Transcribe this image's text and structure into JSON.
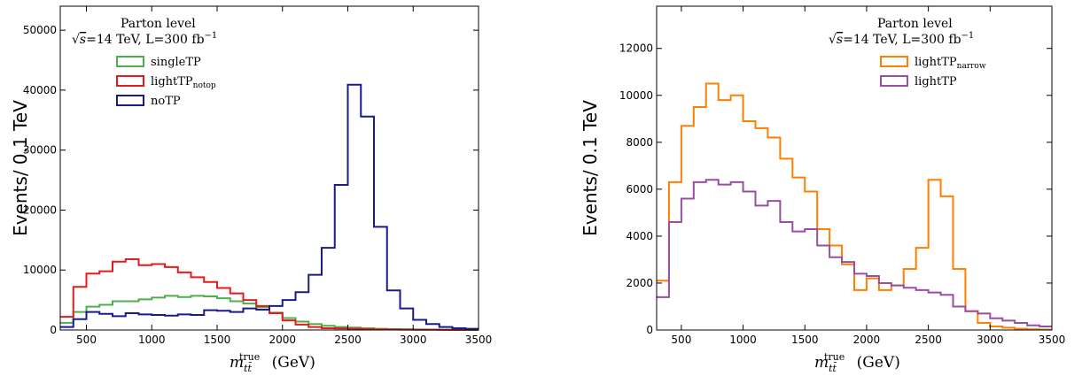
{
  "chart_data": [
    {
      "type": "step-histogram",
      "ylabel": "Events/ 0.1 TeV",
      "xlabel_main": "m",
      "xlabel_sub": "tt̄",
      "xlabel_sup": "true",
      "xlabel_unit": "(GeV)",
      "xlim": [
        300,
        3500
      ],
      "ylim": [
        0,
        54000
      ],
      "xticks": [
        500,
        1000,
        1500,
        2000,
        2500,
        3000,
        3500
      ],
      "yticks": [
        0,
        10000,
        20000,
        30000,
        40000,
        50000
      ],
      "annotation_line1": "Parton level",
      "annotation_sqrt": "√",
      "annotation_s": "s",
      "annotation_line2": "=14 TeV,  L=300 fb",
      "annotation_sup": "−1",
      "legend_position": "upper-left",
      "bin_edges": [
        300,
        400,
        500,
        600,
        700,
        800,
        900,
        1000,
        1100,
        1200,
        1300,
        1400,
        1500,
        1600,
        1700,
        1800,
        1900,
        2000,
        2100,
        2200,
        2300,
        2400,
        2500,
        2600,
        2700,
        2800,
        2900,
        3000,
        3100,
        3200,
        3300,
        3400,
        3500
      ],
      "series": [
        {
          "name": "singleTP",
          "name_sub": "",
          "color": "#4daf4a",
          "values": [
            1200,
            3000,
            3900,
            4200,
            4800,
            4800,
            5100,
            5400,
            5700,
            5500,
            5700,
            5600,
            5300,
            4800,
            4400,
            3800,
            2900,
            2000,
            1400,
            1000,
            700,
            500,
            400,
            300,
            200,
            150,
            120,
            100,
            80,
            60,
            40,
            30
          ]
        },
        {
          "name": "lightTP",
          "name_sub": "notop",
          "color": "#e41a1c",
          "values": [
            2200,
            7200,
            9400,
            9800,
            11400,
            11800,
            10800,
            11000,
            10500,
            9600,
            8800,
            8000,
            7000,
            6100,
            5000,
            4000,
            2800,
            1600,
            900,
            500,
            300,
            250,
            200,
            150,
            100,
            80,
            60,
            40,
            30,
            20,
            15,
            10
          ]
        },
        {
          "name": "noTP",
          "name_sub": "",
          "color": "#1a1a8c",
          "values": [
            500,
            1800,
            3000,
            2700,
            2300,
            2800,
            2600,
            2500,
            2400,
            2600,
            2500,
            3300,
            3200,
            3000,
            3600,
            3400,
            4000,
            5000,
            6300,
            9200,
            13700,
            24200,
            40900,
            35600,
            17200,
            6600,
            3600,
            1700,
            1000,
            500,
            300,
            200
          ]
        }
      ]
    },
    {
      "type": "step-histogram",
      "ylabel": "Events/ 0.1 TeV",
      "xlabel_main": "m",
      "xlabel_sub": "tt̄",
      "xlabel_sup": "true",
      "xlabel_unit": "(GeV)",
      "xlim": [
        300,
        3500
      ],
      "ylim": [
        0,
        13800
      ],
      "xticks": [
        500,
        1000,
        1500,
        2000,
        2500,
        3000,
        3500
      ],
      "yticks": [
        0,
        2000,
        4000,
        6000,
        8000,
        10000,
        12000
      ],
      "annotation_line1": "Parton level",
      "annotation_sqrt": "√",
      "annotation_s": "s",
      "annotation_line2": "=14 TeV,  L=300 fb",
      "annotation_sup": "−1",
      "legend_position": "upper-right",
      "bin_edges": [
        300,
        400,
        500,
        600,
        700,
        800,
        900,
        1000,
        1100,
        1200,
        1300,
        1400,
        1500,
        1600,
        1700,
        1800,
        1900,
        2000,
        2100,
        2200,
        2300,
        2400,
        2500,
        2600,
        2700,
        2800,
        2900,
        3000,
        3100,
        3200,
        3300,
        3400,
        3500
      ],
      "series": [
        {
          "name": "lightTP",
          "name_sub": "narrow",
          "color": "#ff7f00",
          "values": [
            2100,
            6300,
            8700,
            9500,
            10500,
            9800,
            10000,
            8900,
            8600,
            8200,
            7300,
            6500,
            5900,
            4300,
            3600,
            2800,
            1700,
            2200,
            1700,
            1900,
            2600,
            3500,
            6400,
            5700,
            2600,
            800,
            300,
            150,
            100,
            50,
            30,
            20
          ]
        },
        {
          "name": "lightTP",
          "name_sub": "",
          "color": "#984ea3",
          "values": [
            1400,
            4600,
            5600,
            6300,
            6400,
            6200,
            6300,
            5900,
            5300,
            5500,
            4600,
            4200,
            4300,
            3600,
            3100,
            2900,
            2400,
            2300,
            2000,
            1900,
            1800,
            1700,
            1600,
            1500,
            1000,
            800,
            700,
            500,
            400,
            300,
            200,
            150
          ]
        }
      ]
    }
  ]
}
